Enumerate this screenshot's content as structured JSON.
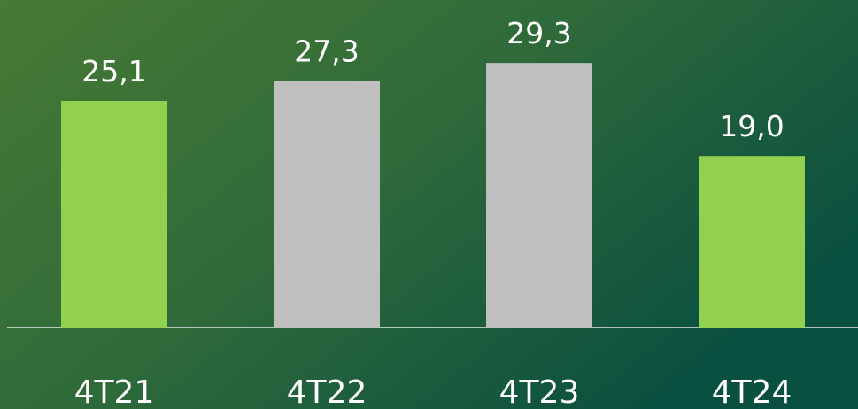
{
  "chart_data": {
    "type": "bar",
    "categories": [
      "4T21",
      "4T22",
      "4T23",
      "4T24"
    ],
    "values": [
      25.1,
      27.3,
      29.3,
      19.0
    ],
    "value_labels": [
      "25,1",
      "27,3",
      "29,3",
      "19,0"
    ],
    "colors": [
      "#92d050",
      "#bfbfbf",
      "#bfbfbf",
      "#92d050"
    ]
  }
}
